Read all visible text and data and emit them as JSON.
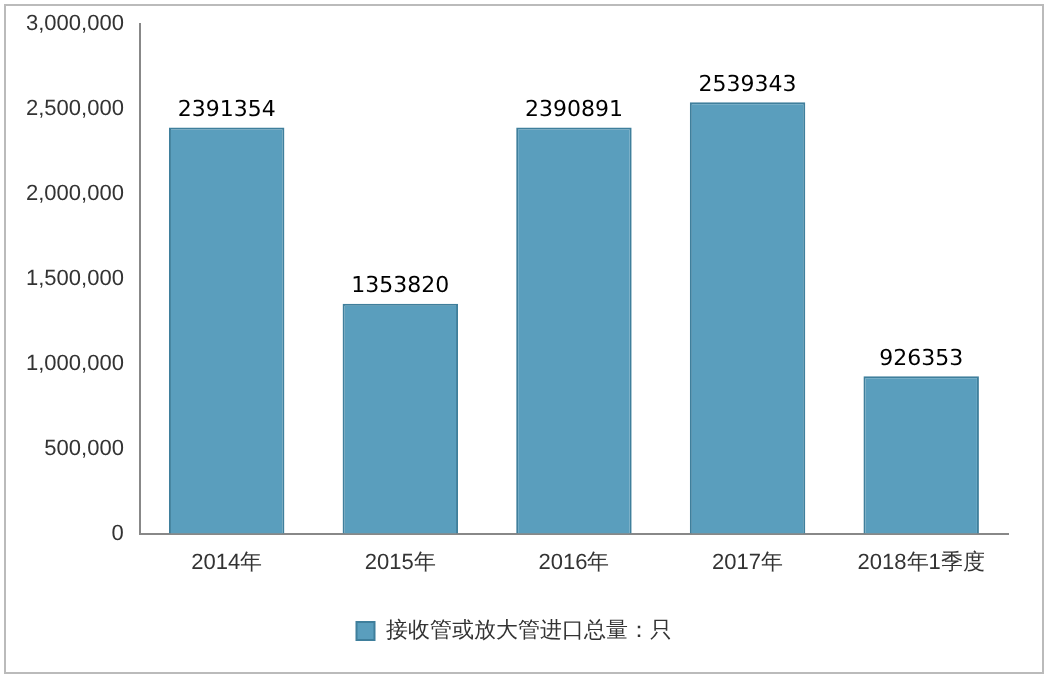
{
  "chart_data": {
    "type": "bar",
    "categories": [
      "2014年",
      "2015年",
      "2016年",
      "2017年",
      "2018年1季度"
    ],
    "series": [
      {
        "name": "接收管或放大管进口总量：只",
        "color": "#5a9ebd",
        "values": [
          2391354,
          1353820,
          2390891,
          2539343,
          926353
        ]
      }
    ],
    "ylim": [
      0,
      3000000
    ],
    "yticks": [
      {
        "value": 0,
        "label": "0"
      },
      {
        "value": 500000,
        "label": "500,000"
      },
      {
        "value": 1000000,
        "label": "1,000,000"
      },
      {
        "value": 1500000,
        "label": "1,500,000"
      },
      {
        "value": 2000000,
        "label": "2,000,000"
      },
      {
        "value": 2500000,
        "label": "2,500,000"
      },
      {
        "value": 3000000,
        "label": "3,000,000"
      }
    ],
    "grid": false,
    "legend": "bottom",
    "data_labels": true
  }
}
